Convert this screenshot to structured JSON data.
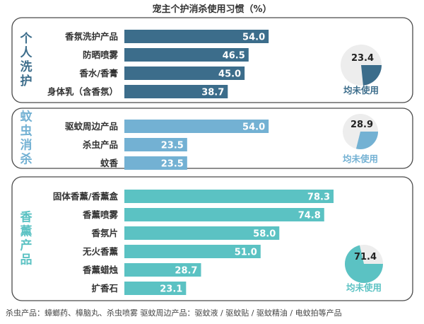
{
  "chart_data": {
    "type": "bar",
    "orientation": "horizontal",
    "title": "宠主个护消杀使用习惯（%）",
    "groups": [
      {
        "label": "个人洗护",
        "color": "#3c6d8b",
        "categories": [
          "香氛洗护产品",
          "防晒喷雾",
          "香水/香膏",
          "身体乳（含香氛）"
        ],
        "values": [
          54.0,
          46.5,
          45.0,
          38.7
        ],
        "average_label": "均未使用",
        "average_value": 23.4
      },
      {
        "label": "蚊虫消杀",
        "color": "#73b1d3",
        "categories": [
          "驱蚊周边产品",
          "杀虫产品",
          "蚊香"
        ],
        "values": [
          54.0,
          23.5,
          23.5
        ],
        "average_label": "均未使用",
        "average_value": 28.9
      },
      {
        "label": "香薰产品",
        "color": "#5bc2c3",
        "categories": [
          "固体香薰/香薰盒",
          "香薰喷雾",
          "香氛片",
          "无火香薰",
          "香薰蜡烛",
          "扩香石"
        ],
        "values": [
          78.3,
          74.8,
          58.0,
          51.0,
          28.7,
          23.1
        ],
        "average_label": "均未使用",
        "average_value": 71.4
      }
    ],
    "footnote": "杀虫产品：蟑螂药、樟脑丸、杀虫喷雾  驱蚊周边产品：驱蚊液 / 驱蚊贴 / 驱蚊精油 / 电蚊拍等产品"
  }
}
